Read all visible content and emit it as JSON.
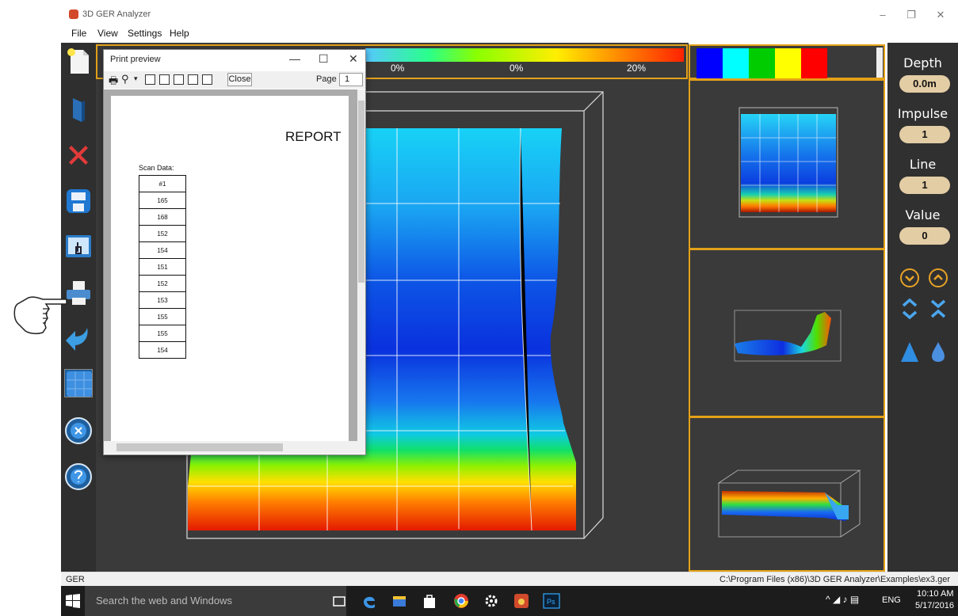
{
  "window": {
    "title": "3D GER Analyzer",
    "minimize": "–",
    "restore": "❐",
    "close": "✕"
  },
  "menu": [
    "File",
    "View",
    "Settings",
    "Help"
  ],
  "toolbar_icons": [
    "new-file-icon",
    "open-book-icon",
    "delete-icon",
    "save-icon",
    "touch-screen-icon",
    "print-icon",
    "back-arrow-icon",
    "grid-view-icon",
    "settings-disc-icon",
    "help-disc-icon"
  ],
  "color_scale": {
    "labels": [
      "0%",
      "0%",
      "20%"
    ]
  },
  "palette": {
    "colors": [
      "#0000ff",
      "#00ffff",
      "#00cc00",
      "#ffff00",
      "#ff0000"
    ]
  },
  "right_panel": {
    "depth_label": "Depth",
    "depth_value": "0.0m",
    "impulse_label": "Impulse",
    "impulse_value": "1",
    "line_label": "Line",
    "line_value": "1",
    "value_label": "Value",
    "value_value": "0"
  },
  "print_preview": {
    "title": "Print preview",
    "minimize": "—",
    "maximize": "☐",
    "close": "✕",
    "close_button": "Close",
    "page_label": "Page",
    "page_value": "1",
    "report_title": "REPORT",
    "scan_label": "Scan Data:",
    "rows": [
      "#1",
      "165",
      "168",
      "152",
      "154",
      "151",
      "152",
      "153",
      "155",
      "155",
      "154"
    ]
  },
  "status": {
    "left": "GER",
    "right": "C:\\Program Files (x86)\\3D GER Analyzer\\Examples\\ex3.ger"
  },
  "taskbar": {
    "search_placeholder": "Search the web and Windows",
    "lang": "ENG",
    "time": "10:10 AM",
    "date": "5/17/2016"
  }
}
